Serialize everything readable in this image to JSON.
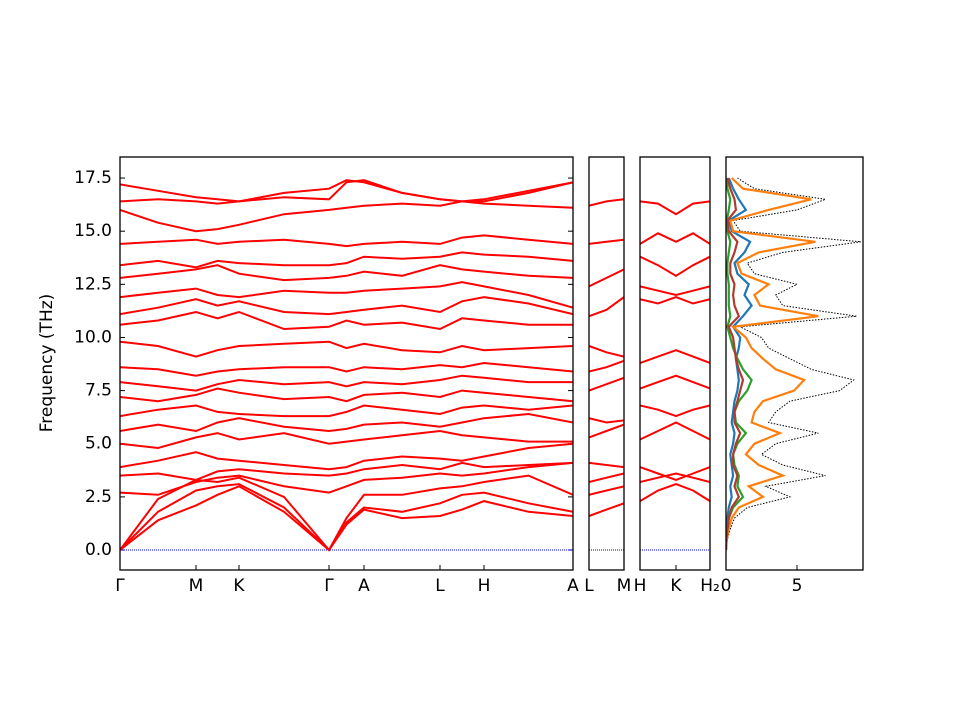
{
  "chart_data": [
    {
      "type": "line",
      "ylabel": "Frequency (THz)",
      "color": "#ff0000",
      "baseline": 0,
      "baseline_color": "#0000ff",
      "ylim": [
        -0.94,
        18.49
      ],
      "yticks": [
        {
          "value": 0,
          "label": "0.0"
        },
        2.5,
        {
          "value": 5,
          "label": "5.0"
        },
        7.5,
        {
          "value": 10,
          "label": "10.0"
        },
        12.5,
        {
          "value": 15,
          "label": "15.0"
        },
        17.5
      ],
      "xlim": [
        0,
        4.53
      ],
      "xticks": [
        {
          "value": 0,
          "label": "Γ"
        },
        {
          "value": 0.76,
          "label": "M"
        },
        {
          "value": 1.19,
          "label": "K"
        },
        {
          "value": 2.09,
          "label": "Γ"
        },
        {
          "value": 2.44,
          "label": "A"
        },
        {
          "value": 3.2,
          "label": "L"
        },
        {
          "value": 3.64,
          "label": "H"
        },
        {
          "value": 4.53,
          "label": "A"
        }
      ],
      "x": [
        0,
        0.38,
        0.76,
        0.975,
        1.19,
        1.64,
        2.09,
        2.265,
        2.44,
        2.82,
        3.2,
        3.42,
        3.64,
        4.085,
        4.53
      ],
      "series": [
        {
          "values": [
            0,
            1.4,
            2.1,
            2.6,
            3.0,
            1.8,
            0,
            1.2,
            1.9,
            1.5,
            1.6,
            1.9,
            2.3,
            1.8,
            1.6
          ]
        },
        {
          "values": [
            0,
            1.8,
            2.8,
            3.0,
            3.1,
            2.0,
            0,
            1.3,
            2.0,
            1.8,
            2.2,
            2.6,
            2.7,
            2.2,
            1.8
          ]
        },
        {
          "values": [
            0,
            2.4,
            3.3,
            3.2,
            3.4,
            2.5,
            0,
            1.5,
            2.6,
            2.6,
            2.9,
            3.0,
            3.2,
            3.5,
            2.6
          ]
        },
        {
          "values": [
            2.7,
            2.6,
            3.2,
            3.4,
            3.5,
            3.0,
            2.7,
            3.0,
            3.3,
            3.4,
            3.6,
            3.5,
            3.6,
            3.9,
            4.1
          ]
        },
        {
          "values": [
            3.5,
            3.6,
            3.3,
            3.7,
            3.8,
            3.6,
            3.5,
            3.6,
            3.8,
            4.0,
            3.8,
            4.1,
            3.9,
            4.0,
            4.1
          ]
        },
        {
          "values": [
            3.9,
            4.2,
            4.6,
            4.3,
            4.2,
            4.0,
            3.8,
            3.9,
            4.2,
            4.4,
            4.3,
            4.2,
            4.4,
            4.8,
            5.0
          ]
        },
        {
          "values": [
            5.0,
            4.8,
            5.3,
            5.5,
            5.2,
            5.5,
            5.0,
            5.1,
            5.2,
            5.4,
            5.6,
            5.4,
            5.3,
            5.1,
            5.1
          ]
        },
        {
          "values": [
            5.6,
            5.9,
            5.6,
            6.0,
            6.2,
            5.8,
            5.6,
            5.7,
            5.9,
            6.0,
            5.8,
            6.0,
            6.2,
            6.4,
            6.0
          ]
        },
        {
          "values": [
            6.3,
            6.6,
            6.8,
            6.5,
            6.4,
            6.3,
            6.3,
            6.5,
            6.8,
            6.6,
            6.4,
            6.7,
            6.8,
            6.6,
            6.8
          ]
        },
        {
          "values": [
            7.2,
            7.0,
            7.3,
            7.6,
            7.4,
            7.1,
            7.2,
            7.0,
            7.3,
            7.4,
            7.2,
            7.5,
            7.4,
            7.2,
            7.0
          ]
        },
        {
          "values": [
            7.9,
            7.7,
            7.5,
            7.8,
            8.0,
            7.8,
            7.9,
            7.7,
            7.9,
            7.8,
            8.0,
            8.2,
            8.1,
            7.9,
            7.9
          ]
        },
        {
          "values": [
            8.6,
            8.5,
            8.2,
            8.4,
            8.5,
            8.6,
            8.6,
            8.4,
            8.6,
            8.5,
            8.7,
            8.6,
            8.8,
            8.6,
            8.4
          ]
        },
        {
          "values": [
            9.8,
            9.6,
            9.1,
            9.4,
            9.6,
            9.7,
            9.8,
            9.5,
            9.7,
            9.4,
            9.3,
            9.6,
            9.4,
            9.5,
            9.6
          ]
        },
        {
          "values": [
            10.6,
            10.8,
            11.2,
            10.9,
            11.2,
            10.4,
            10.5,
            10.8,
            10.6,
            10.7,
            10.4,
            10.9,
            10.8,
            10.6,
            10.6
          ]
        },
        {
          "values": [
            11.1,
            11.4,
            11.8,
            11.5,
            11.7,
            11.2,
            11.1,
            11.2,
            11.3,
            11.5,
            11.2,
            11.7,
            11.9,
            11.6,
            11.1
          ]
        },
        {
          "values": [
            11.9,
            12.1,
            12.3,
            12.0,
            11.9,
            12.2,
            12.1,
            12.1,
            12.2,
            12.3,
            12.4,
            12.6,
            12.4,
            12.0,
            11.4
          ]
        },
        {
          "values": [
            12.8,
            13.0,
            13.2,
            13.4,
            13.0,
            12.7,
            12.8,
            12.9,
            13.1,
            12.9,
            13.4,
            13.2,
            13.1,
            12.9,
            12.8
          ]
        },
        {
          "values": [
            13.4,
            13.6,
            13.3,
            13.6,
            13.5,
            13.4,
            13.4,
            13.5,
            13.8,
            13.7,
            13.8,
            14.0,
            13.9,
            13.8,
            13.6
          ]
        },
        {
          "values": [
            14.4,
            14.5,
            14.6,
            14.4,
            14.5,
            14.6,
            14.4,
            14.3,
            14.4,
            14.5,
            14.4,
            14.7,
            14.8,
            14.6,
            14.4
          ]
        },
        {
          "values": [
            16.0,
            15.4,
            15.0,
            15.1,
            15.3,
            15.8,
            16.0,
            16.1,
            16.2,
            16.3,
            16.2,
            16.4,
            16.3,
            16.2,
            16.1
          ]
        },
        {
          "values": [
            16.4,
            16.5,
            16.4,
            16.3,
            16.4,
            16.6,
            16.5,
            17.3,
            17.4,
            16.8,
            16.5,
            16.4,
            16.4,
            16.8,
            17.3
          ]
        },
        {
          "values": [
            17.2,
            16.9,
            16.6,
            16.5,
            16.4,
            16.8,
            17.0,
            17.4,
            17.3,
            16.8,
            16.5,
            16.4,
            16.5,
            16.9,
            17.3
          ]
        }
      ]
    },
    {
      "type": "line",
      "color": "#ff0000",
      "baseline": 0,
      "baseline_color": "#0000ff",
      "ylim": [
        -0.94,
        18.49
      ],
      "xlim": [
        0,
        0.35
      ],
      "xticks": [
        {
          "value": 0,
          "label": "L"
        },
        {
          "value": 0.35,
          "label": "M"
        }
      ],
      "x": [
        0,
        0.175,
        0.35
      ],
      "series": [
        {
          "values": [
            1.6,
            1.9,
            2.2
          ]
        },
        {
          "values": [
            2.6,
            2.8,
            3.0
          ]
        },
        {
          "values": [
            3.2,
            3.4,
            3.6
          ]
        },
        {
          "values": [
            4.1,
            4.0,
            3.9
          ]
        },
        {
          "values": [
            5.3,
            5.6,
            5.9
          ]
        },
        {
          "values": [
            6.2,
            6.0,
            6.1
          ]
        },
        {
          "values": [
            7.5,
            7.8,
            8.1
          ]
        },
        {
          "values": [
            8.4,
            8.6,
            8.9
          ]
        },
        {
          "values": [
            9.6,
            9.3,
            9.1
          ]
        },
        {
          "values": [
            11.0,
            11.3,
            11.9
          ]
        },
        {
          "values": [
            12.4,
            12.8,
            13.2
          ]
        },
        {
          "values": [
            14.4,
            14.5,
            14.6
          ]
        },
        {
          "values": [
            16.2,
            16.4,
            16.5
          ]
        }
      ]
    },
    {
      "type": "line",
      "color": "#ff0000",
      "baseline": 0,
      "baseline_color": "#0000ff",
      "ylim": [
        -0.94,
        18.49
      ],
      "xlim": [
        0,
        0.7
      ],
      "xticks": [
        {
          "value": 0,
          "label": "H"
        },
        {
          "value": 0.36,
          "label": "K"
        },
        {
          "value": 0.7,
          "label": "H₂"
        }
      ],
      "x": [
        0,
        0.18,
        0.36,
        0.53,
        0.7
      ],
      "series": [
        {
          "values": [
            2.3,
            2.8,
            3.1,
            2.8,
            2.3
          ]
        },
        {
          "values": [
            3.2,
            3.4,
            3.6,
            3.4,
            3.2
          ]
        },
        {
          "values": [
            3.9,
            3.6,
            3.3,
            3.6,
            3.9
          ]
        },
        {
          "values": [
            5.2,
            5.6,
            6.0,
            5.6,
            5.2
          ]
        },
        {
          "values": [
            6.8,
            6.6,
            6.3,
            6.6,
            6.8
          ]
        },
        {
          "values": [
            7.6,
            7.9,
            8.2,
            7.9,
            7.6
          ]
        },
        {
          "values": [
            8.8,
            9.1,
            9.4,
            9.1,
            8.8
          ]
        },
        {
          "values": [
            11.8,
            11.6,
            11.9,
            11.6,
            11.8
          ]
        },
        {
          "values": [
            12.4,
            12.2,
            12.0,
            12.2,
            12.4
          ]
        },
        {
          "values": [
            13.8,
            13.4,
            12.9,
            13.4,
            13.8
          ]
        },
        {
          "values": [
            14.4,
            14.9,
            14.5,
            14.9,
            14.4
          ]
        },
        {
          "values": [
            16.4,
            16.3,
            15.8,
            16.3,
            16.4
          ]
        }
      ]
    },
    {
      "type": "dos",
      "ylim": [
        -0.94,
        18.49
      ],
      "xlim": [
        0,
        9.65
      ],
      "xticks": [
        0,
        5
      ],
      "y": [
        0,
        0.5,
        1,
        1.5,
        2,
        2.5,
        3,
        3.5,
        4,
        4.5,
        5,
        5.5,
        6,
        6.5,
        7,
        7.5,
        8,
        8.5,
        9,
        9.5,
        10,
        10.5,
        11,
        11.5,
        12,
        12.5,
        13,
        13.5,
        14,
        14.5,
        15,
        15.5,
        16,
        16.5,
        17,
        17.5
      ],
      "series": [
        {
          "color": "#000000",
          "dashed": true,
          "values": [
            0,
            0.1,
            0.3,
            0.6,
            1.5,
            4.5,
            2.8,
            7,
            4,
            2.5,
            3.5,
            6.5,
            3,
            3.5,
            4.5,
            8,
            9,
            6,
            4.5,
            3,
            2.5,
            1,
            9.2,
            4,
            3.5,
            5,
            2,
            1.5,
            4,
            9.5,
            1,
            0.5,
            5,
            7,
            2,
            0.8
          ]
        },
        {
          "color": "#1f77b4",
          "values": [
            0,
            0,
            0.05,
            0.1,
            0.2,
            0.4,
            0.3,
            0.5,
            0.4,
            0.3,
            0.5,
            0.6,
            0.4,
            0.5,
            0.6,
            0.8,
            0.9,
            0.8,
            0.7,
            0.9,
            1.0,
            0.5,
            1.2,
            1.8,
            1.3,
            1.6,
            0.8,
            0.6,
            1.3,
            1.7,
            0.4,
            0.2,
            1.4,
            0.9,
            0.5,
            0.2
          ]
        },
        {
          "color": "#ff7f0e",
          "values": [
            0,
            0.05,
            0.2,
            0.4,
            0.9,
            2.6,
            1.6,
            4,
            2.3,
            1.4,
            2,
            3.8,
            1.8,
            2,
            2.6,
            4.8,
            5.5,
            3.5,
            2.6,
            1.8,
            1.4,
            0.5,
            6.5,
            2.4,
            2,
            3,
            1.1,
            0.8,
            2.3,
            6.3,
            0.5,
            0.3,
            3,
            6,
            1.2,
            0.4
          ]
        },
        {
          "color": "#2ca02c",
          "values": [
            0,
            0.02,
            0.1,
            0.2,
            0.5,
            1.2,
            0.8,
            0.9,
            0.6,
            0.5,
            0.8,
            1.4,
            0.7,
            0.6,
            0.9,
            1.5,
            1.8,
            1.2,
            0.8,
            0.5,
            0.3,
            0.1,
            0.3,
            0.2,
            0.2,
            0.2,
            0.1,
            0.1,
            0.2,
            0.3,
            0.1,
            0.05,
            0.2,
            0.3,
            0.1,
            0.05
          ]
        },
        {
          "color": "#b03a2e",
          "values": [
            0,
            0.02,
            0.1,
            0.2,
            0.4,
            0.9,
            0.6,
            0.8,
            0.5,
            0.5,
            0.7,
            1.0,
            0.6,
            0.6,
            0.8,
            1.0,
            1.2,
            0.9,
            0.7,
            0.6,
            0.5,
            0.2,
            0.9,
            0.6,
            0.5,
            0.6,
            0.3,
            0.3,
            0.6,
            0.8,
            0.2,
            0.1,
            0.7,
            0.6,
            0.3,
            0.1
          ]
        }
      ]
    }
  ]
}
